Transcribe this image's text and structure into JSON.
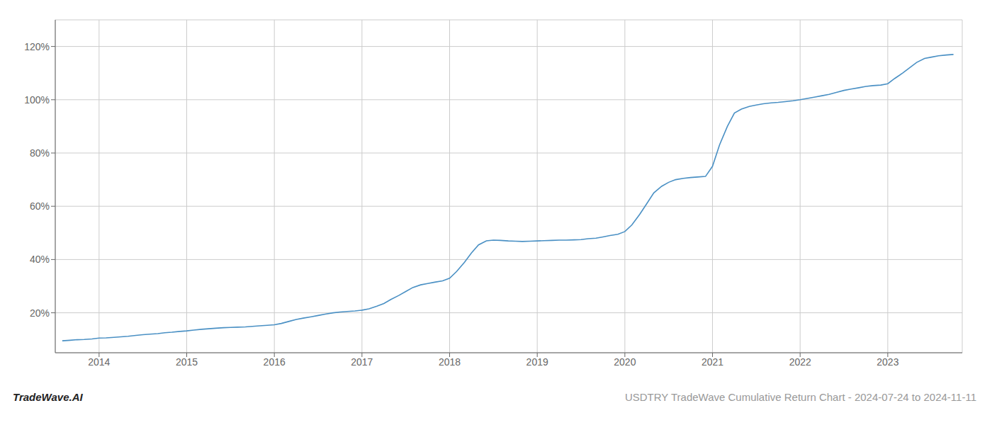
{
  "chart_data": {
    "type": "line",
    "title": "USDTRY TradeWave Cumulative Return Chart - 2024-07-24 to 2024-11-11",
    "annotations": [
      "TradeWave.AI"
    ],
    "color": "#4a90c4",
    "grid": true,
    "x": [
      2013.58,
      2013.67,
      2013.75,
      2013.83,
      2013.92,
      2014.0,
      2014.08,
      2014.17,
      2014.25,
      2014.33,
      2014.42,
      2014.5,
      2014.58,
      2014.67,
      2014.75,
      2014.83,
      2014.92,
      2015.0,
      2015.08,
      2015.17,
      2015.25,
      2015.33,
      2015.42,
      2015.5,
      2015.58,
      2015.67,
      2015.75,
      2015.83,
      2015.92,
      2016.0,
      2016.08,
      2016.17,
      2016.25,
      2016.33,
      2016.42,
      2016.5,
      2016.58,
      2016.67,
      2016.75,
      2016.83,
      2016.92,
      2017.0,
      2017.08,
      2017.17,
      2017.25,
      2017.33,
      2017.42,
      2017.5,
      2017.58,
      2017.67,
      2017.75,
      2017.83,
      2017.92,
      2018.0,
      2018.08,
      2018.17,
      2018.25,
      2018.33,
      2018.42,
      2018.5,
      2018.58,
      2018.67,
      2018.75,
      2018.83,
      2018.92,
      2019.0,
      2019.08,
      2019.17,
      2019.25,
      2019.33,
      2019.42,
      2019.5,
      2019.58,
      2019.67,
      2019.75,
      2019.83,
      2019.92,
      2020.0,
      2020.08,
      2020.17,
      2020.25,
      2020.33,
      2020.42,
      2020.5,
      2020.58,
      2020.67,
      2020.75,
      2020.83,
      2020.92,
      2021.0,
      2021.08,
      2021.17,
      2021.25,
      2021.33,
      2021.42,
      2021.5,
      2021.58,
      2021.67,
      2021.75,
      2021.83,
      2021.92,
      2022.0,
      2022.08,
      2022.17,
      2022.25,
      2022.33,
      2022.42,
      2022.5,
      2022.58,
      2022.67,
      2022.75,
      2022.83,
      2022.92,
      2023.0,
      2023.08,
      2023.17,
      2023.25,
      2023.33,
      2023.42,
      2023.5,
      2023.58,
      2023.67,
      2023.75
    ],
    "values": [
      9.5,
      9.7,
      9.9,
      10.0,
      10.2,
      10.5,
      10.6,
      10.8,
      11.0,
      11.2,
      11.5,
      11.8,
      12.0,
      12.2,
      12.5,
      12.7,
      13.0,
      13.2,
      13.5,
      13.8,
      14.0,
      14.2,
      14.4,
      14.5,
      14.6,
      14.7,
      14.9,
      15.1,
      15.3,
      15.5,
      16.0,
      16.8,
      17.5,
      18.0,
      18.5,
      19.0,
      19.5,
      20.0,
      20.3,
      20.5,
      20.7,
      21.0,
      21.5,
      22.5,
      23.5,
      25.0,
      26.5,
      28.0,
      29.5,
      30.5,
      31.0,
      31.5,
      32.0,
      33.0,
      35.5,
      39.0,
      42.5,
      45.5,
      47.0,
      47.3,
      47.2,
      47.0,
      46.9,
      46.8,
      46.9,
      47.0,
      47.1,
      47.2,
      47.3,
      47.3,
      47.4,
      47.5,
      47.8,
      48.0,
      48.5,
      49.0,
      49.5,
      50.5,
      53.0,
      57.0,
      61.0,
      65.0,
      67.5,
      69.0,
      70.0,
      70.5,
      70.8,
      71.0,
      71.2,
      75.0,
      83.0,
      90.0,
      95.0,
      96.5,
      97.5,
      98.0,
      98.5,
      98.8,
      99.0,
      99.3,
      99.6,
      100.0,
      100.5,
      101.0,
      101.5,
      102.0,
      102.8,
      103.5,
      104.0,
      104.5,
      105.0,
      105.3,
      105.5,
      106.0,
      108.0,
      110.0,
      112.0,
      114.0,
      115.5,
      116.0,
      116.5,
      116.8,
      117.0
    ],
    "xlim": [
      2013.5,
      2023.85
    ],
    "xticks": [
      2014,
      2015,
      2016,
      2017,
      2018,
      2019,
      2020,
      2021,
      2022,
      2023
    ],
    "ylim": [
      5,
      130
    ],
    "yticks": [
      {
        "value": 20,
        "label": "20%"
      },
      {
        "value": 40,
        "label": "40%"
      },
      {
        "value": 60,
        "label": "60%"
      },
      {
        "value": 80,
        "label": "80%"
      },
      {
        "value": 100,
        "label": "100%"
      },
      {
        "value": 120,
        "label": "120%"
      }
    ]
  }
}
